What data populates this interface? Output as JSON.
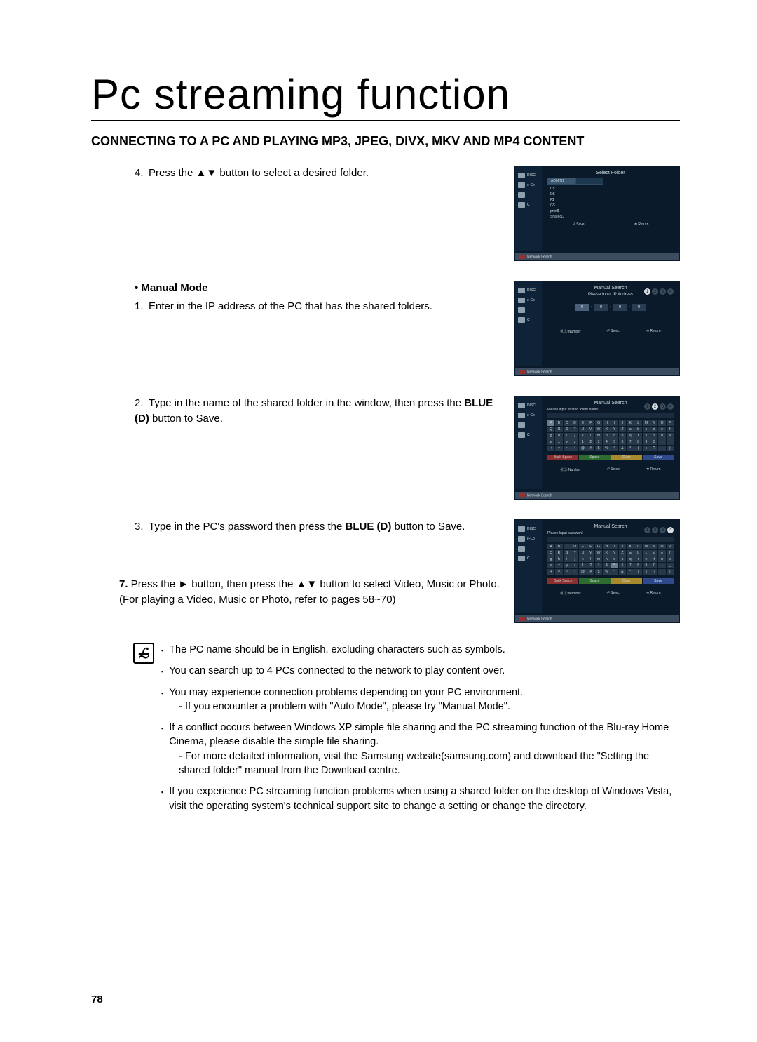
{
  "page_title": "Pc streaming function",
  "section_heading": "CONNECTING TO A PC AND PLAYING MP3, JPEG, DIVX, MKV AND MP4 CONTENT",
  "page_number": "78",
  "step4": {
    "num": "4.",
    "text": "Press the ▲▼ button to select a desired folder."
  },
  "manual_bullet": "• Manual Mode",
  "step_m1": {
    "num": "1.",
    "text": "Enter in the IP address of the PC that has the shared folders."
  },
  "step_m2": {
    "num": "2.",
    "text_a": "Type in the name of the shared folder in the window, then press the ",
    "bold": "BLUE (D)",
    "text_b": " button to Save."
  },
  "step_m3": {
    "num": "3.",
    "text_a": "Type in the PC's password then press the ",
    "bold": "BLUE (D)",
    "text_b": " button to Save."
  },
  "step7": {
    "lead": "7.",
    "text_a": " Press the ► button, then press the ▲▼ button to select Video, Music or Photo.",
    "text_b": "(For playing a Video, Music or Photo, refer to pages 58~70)"
  },
  "notes": [
    "The PC name should be in English, excluding characters such as symbols.",
    "You can search up to 4 PCs connected to the network to play content over.",
    "You may experience connection problems depending on your PC environment.\n- If you encounter a problem with \"Auto Mode\", please try \"Manual Mode\".",
    "If a conflict occurs between Windows XP simple file sharing and the PC streaming function of the Blu-ray Home Cinema, please disable the simple file sharing.\n- For more detailed information, visit the Samsung website(samsung.com) and download the \"Setting the shared folder\" manual from the Download centre.",
    "If you experience PC streaming function problems when using a shared folder on the desktop of Windows Vista, visit the operating system's technical support site to change a setting or change the directory."
  ],
  "screenshots": {
    "common": {
      "breadcrumb": "Network Search",
      "sidebar": [
        "DISC",
        "e-Co",
        "",
        "C"
      ],
      "bottom": {
        "number": "Number",
        "select": "Select",
        "return": "Return",
        "save": "Save"
      }
    },
    "select_folder": {
      "title": "Select Folder",
      "tab": "ADMIN1",
      "folders": [
        "C$",
        "D$",
        "F$",
        "G$",
        "print$",
        "SharedD"
      ]
    },
    "manual_ip": {
      "title": "Manual Search",
      "sub": "Please Input IP Address",
      "ips": [
        "0",
        "0",
        "0",
        "0"
      ]
    },
    "manual_name": {
      "title": "Manual Search",
      "sub": "Please input shared folder name",
      "soft": [
        "Back Space",
        "Space",
        "Clear",
        "Save"
      ]
    },
    "manual_pw": {
      "title": "Manual Search",
      "sub": "Please Input password",
      "soft": [
        "Back Space",
        "Space",
        "Clear",
        "Save"
      ]
    },
    "keyboard": [
      [
        "A",
        "B",
        "C",
        "D",
        "E",
        "F",
        "G",
        "H",
        "I",
        "J",
        "K",
        "L",
        "M",
        "N",
        "O",
        "P"
      ],
      [
        "Q",
        "R",
        "S",
        "T",
        "U",
        "V",
        "W",
        "X",
        "Y",
        "Z",
        "a",
        "b",
        "c",
        "d",
        "e",
        "f"
      ],
      [
        "g",
        "h",
        "i",
        "j",
        "k",
        "l",
        "m",
        "n",
        "o",
        "p",
        "q",
        "r",
        "s",
        "t",
        "u",
        "v"
      ],
      [
        "w",
        "x",
        "y",
        "z",
        "1",
        "2",
        "3",
        "4",
        "5",
        "6",
        "7",
        "8",
        "9",
        "0",
        "-",
        "_"
      ],
      [
        "+",
        "=",
        "~",
        "!",
        "@",
        "#",
        "$",
        "%",
        "^",
        "&",
        "*",
        "(",
        ")",
        "?",
        ":",
        "|"
      ]
    ]
  },
  "colors": {
    "ss_bg": "#0a1a2a",
    "ss_side": "#0f2338",
    "ss_crumb": "#3b4d5e"
  }
}
